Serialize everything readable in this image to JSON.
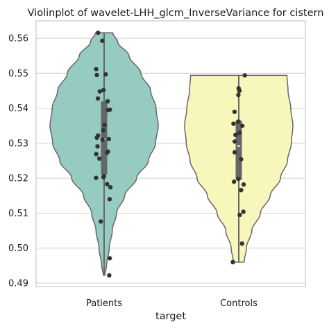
{
  "chart_data": {
    "type": "violin",
    "title": "Violinplot of wavelet-LHH_glcm_InverseVariance for cistern",
    "xlabel": "target",
    "ylabel": "",
    "categories": [
      "Patients",
      "Controls"
    ],
    "ylim": [
      0.489,
      0.565
    ],
    "yticks": [
      0.49,
      0.5,
      0.51,
      0.52,
      0.53,
      0.54,
      0.55,
      0.56
    ],
    "ytick_labels": [
      "0.49",
      "0.50",
      "0.51",
      "0.52",
      "0.53",
      "0.54",
      "0.55",
      "0.56"
    ],
    "grid": true,
    "legend": "none",
    "colors": {
      "Patients": "#96cbc1",
      "Controls": "#f7f7bb",
      "outline": "#666666",
      "points": "#333333",
      "grid": "#d6d6d6",
      "frame": "#cfcfcf",
      "box": "#666666",
      "median": "#ffffff"
    },
    "series": [
      {
        "name": "Patients",
        "range": [
          0.4922,
          0.5616
        ],
        "box": {
          "q1": 0.521,
          "median": 0.5312,
          "q3": 0.542
        },
        "density": [
          [
            0.4922,
            0.015
          ],
          [
            0.495,
            0.045
          ],
          [
            0.5,
            0.095
          ],
          [
            0.505,
            0.15
          ],
          [
            0.51,
            0.23
          ],
          [
            0.515,
            0.38
          ],
          [
            0.52,
            0.6
          ],
          [
            0.525,
            0.82
          ],
          [
            0.53,
            0.95
          ],
          [
            0.535,
            1.0
          ],
          [
            0.54,
            0.96
          ],
          [
            0.545,
            0.86
          ],
          [
            0.55,
            0.68
          ],
          [
            0.555,
            0.46
          ],
          [
            0.559,
            0.25
          ],
          [
            0.5616,
            0.16
          ]
        ],
        "points": [
          {
            "y": 0.5616,
            "j": -0.46
          },
          {
            "y": 0.5593,
            "j": -0.14
          },
          {
            "y": 0.5512,
            "j": -0.6
          },
          {
            "y": 0.5497,
            "j": 0.12
          },
          {
            "y": 0.5495,
            "j": -0.55
          },
          {
            "y": 0.5452,
            "j": -0.05
          },
          {
            "y": 0.5448,
            "j": -0.33
          },
          {
            "y": 0.5428,
            "j": -0.47
          },
          {
            "y": 0.542,
            "j": 0.27
          },
          {
            "y": 0.5396,
            "j": 0.44
          },
          {
            "y": 0.5395,
            "j": 0.3
          },
          {
            "y": 0.5352,
            "j": 0.03
          },
          {
            "y": 0.5337,
            "j": -0.05
          },
          {
            "y": 0.5322,
            "j": -0.46
          },
          {
            "y": 0.5316,
            "j": -0.55
          },
          {
            "y": 0.5312,
            "j": 0.36
          },
          {
            "y": 0.531,
            "j": -0.12
          },
          {
            "y": 0.5291,
            "j": -0.5
          },
          {
            "y": 0.5276,
            "j": 0.29
          },
          {
            "y": 0.5273,
            "j": 0.23
          },
          {
            "y": 0.5269,
            "j": -0.6
          },
          {
            "y": 0.5256,
            "j": -0.36
          },
          {
            "y": 0.5206,
            "j": -0.01
          },
          {
            "y": 0.5203,
            "j": -0.05
          },
          {
            "y": 0.5201,
            "j": -0.61
          },
          {
            "y": 0.5183,
            "j": 0.23
          },
          {
            "y": 0.5174,
            "j": 0.48
          },
          {
            "y": 0.514,
            "j": 0.42
          },
          {
            "y": 0.5076,
            "j": -0.25
          },
          {
            "y": 0.4971,
            "j": 0.43
          },
          {
            "y": 0.4922,
            "j": 0.39
          }
        ]
      },
      {
        "name": "Controls",
        "range": [
          0.496,
          0.5494
        ],
        "box": {
          "q1": 0.5195,
          "median": 0.5292,
          "q3": 0.5365
        },
        "density": [
          [
            0.496,
            0.1
          ],
          [
            0.5,
            0.14
          ],
          [
            0.505,
            0.24
          ],
          [
            0.51,
            0.4
          ],
          [
            0.515,
            0.58
          ],
          [
            0.52,
            0.77
          ],
          [
            0.525,
            0.9
          ],
          [
            0.53,
            0.97
          ],
          [
            0.535,
            1.0
          ],
          [
            0.54,
            0.96
          ],
          [
            0.545,
            0.91
          ],
          [
            0.5494,
            0.89
          ]
        ],
        "points": [
          {
            "y": 0.5494,
            "j": 0.46
          },
          {
            "y": 0.5457,
            "j": -0.01
          },
          {
            "y": 0.545,
            "j": 0.05
          },
          {
            "y": 0.5438,
            "j": -0.03
          },
          {
            "y": 0.539,
            "j": -0.32
          },
          {
            "y": 0.5362,
            "j": -0.04
          },
          {
            "y": 0.5356,
            "j": -0.4
          },
          {
            "y": 0.535,
            "j": 0.27
          },
          {
            "y": 0.533,
            "j": 0.05
          },
          {
            "y": 0.5324,
            "j": -0.25
          },
          {
            "y": 0.5305,
            "j": -0.31
          },
          {
            "y": 0.5274,
            "j": -0.31
          },
          {
            "y": 0.5254,
            "j": 0.18
          },
          {
            "y": 0.5198,
            "j": -0.03
          },
          {
            "y": 0.519,
            "j": -0.36
          },
          {
            "y": 0.5182,
            "j": 0.37
          },
          {
            "y": 0.5166,
            "j": 0.18
          },
          {
            "y": 0.5104,
            "j": 0.35
          },
          {
            "y": 0.5095,
            "j": 0.07
          },
          {
            "y": 0.5013,
            "j": 0.25
          },
          {
            "y": 0.496,
            "j": -0.45
          }
        ]
      }
    ]
  }
}
